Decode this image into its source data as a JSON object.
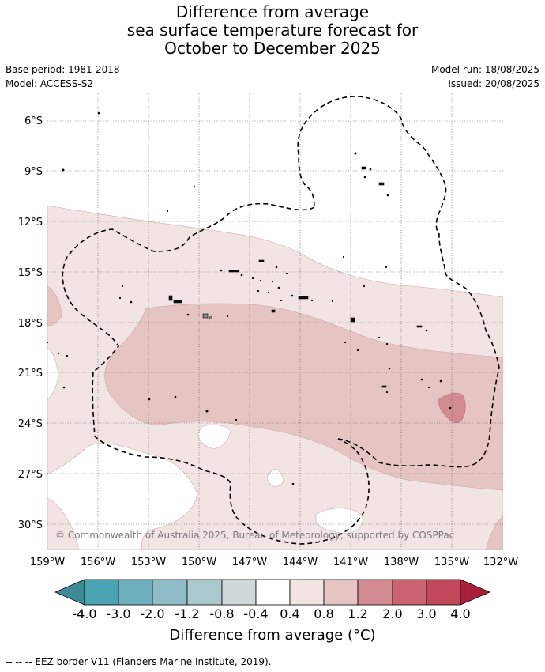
{
  "title": {
    "line1": "Difference from average",
    "line2": "sea surface temperature forecast for",
    "line3": "October to December 2025"
  },
  "meta": {
    "base_period": "Base period: 1981-2018",
    "model": "Model: ACCESS-S2",
    "model_run": "Model run: 18/08/2025",
    "issued": "Issued: 20/08/2025"
  },
  "map": {
    "lat_labels": [
      "6°S",
      "9°S",
      "12°S",
      "15°S",
      "18°S",
      "21°S",
      "24°S",
      "27°S",
      "30°S"
    ],
    "lon_labels": [
      "159°W",
      "156°W",
      "153°W",
      "150°W",
      "147°W",
      "144°W",
      "141°W",
      "138°W",
      "135°W",
      "132°W"
    ],
    "copyright": "© Commonwealth of Australia 2025, Bureau of Meteorology, supported by COSPPac",
    "grid": true,
    "eez_line": "dashed"
  },
  "colorbar": {
    "ticks": [
      "-4.0",
      "-3.0",
      "-2.0",
      "-1.2",
      "-0.8",
      "-0.4",
      "0.4",
      "0.8",
      "1.2",
      "2.0",
      "3.0",
      "4.0"
    ],
    "colors": [
      "#3d8b96",
      "#4aa3b3",
      "#6fb0bf",
      "#8fbcc6",
      "#aac9cd",
      "#d0d7d8",
      "#ffffff",
      "#f3e4e4",
      "#e6c4c3",
      "#d48a91",
      "#cb6370",
      "#c0485a",
      "#a81e3c"
    ],
    "label": "Difference from average (°C)"
  },
  "footnote": "--  --  -- EEZ border V11 (Flanders Marine Institute, 2019)."
}
